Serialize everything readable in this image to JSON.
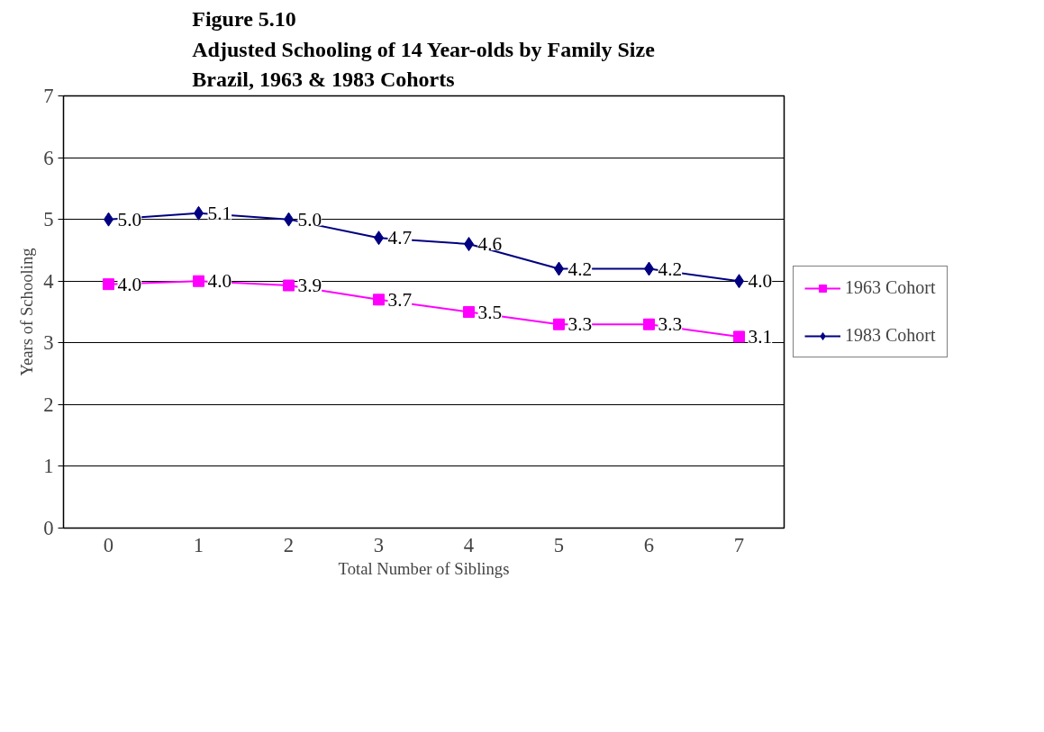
{
  "chart_data": {
    "type": "line",
    "title": "Figure 5.10\nAdjusted Schooling of 14 Year-olds by Family Size\nBrazil, 1963 & 1983 Cohorts",
    "xlabel": "Total Number of Siblings",
    "ylabel": "Years of Schooling",
    "categories": [
      "0",
      "1",
      "2",
      "3",
      "4",
      "5",
      "6",
      "7"
    ],
    "series": [
      {
        "name": "1963 Cohort",
        "color": "#ff00ff",
        "marker": "square",
        "values": [
          3.95,
          4.0,
          3.93,
          3.7,
          3.5,
          3.3,
          3.3,
          3.1
        ],
        "value_labels": [
          "4.0",
          "4.0",
          "3.9",
          "3.7",
          "3.5",
          "3.3",
          "3.3",
          "3.1"
        ]
      },
      {
        "name": "1983 Cohort",
        "color": "#000080",
        "marker": "diamond",
        "values": [
          5.0,
          5.1,
          5.0,
          4.7,
          4.6,
          4.2,
          4.2,
          4.0
        ],
        "value_labels": [
          "5.0",
          "5.1",
          "5.0",
          "4.7",
          "4.6",
          "4.2",
          "4.2",
          "4.0"
        ]
      }
    ],
    "ylim": [
      0,
      7
    ],
    "yticks": [
      0,
      1,
      2,
      3,
      4,
      5,
      6,
      7
    ],
    "grid": "y",
    "legend": "right"
  }
}
